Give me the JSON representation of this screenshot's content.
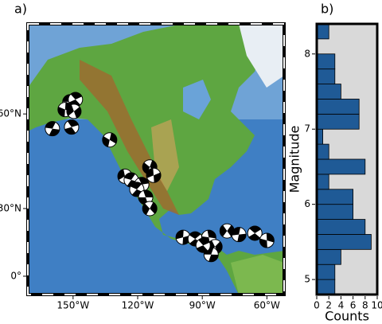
{
  "chart_data": [
    {
      "type": "map",
      "panel": "a)",
      "xlim": [
        -171,
        -52
      ],
      "ylim": [
        -8.5,
        75.3
      ],
      "xticks": [
        {
          "value": -150,
          "label": "150°W"
        },
        {
          "value": -120,
          "label": "120°W"
        },
        {
          "value": -90,
          "label": "90°W"
        },
        {
          "value": -60,
          "label": "60°W"
        }
      ],
      "yticks": [
        {
          "value": 0,
          "label": "0°"
        },
        {
          "value": 30,
          "label": "30°N"
        },
        {
          "value": 60,
          "label": "60°N"
        }
      ],
      "lon": [
        -151.5,
        -148.9,
        -153.7,
        -149.6,
        -159.6,
        -150.7,
        -133.0,
        -125.9,
        -123.0,
        -118.1,
        -114.4,
        -112.6,
        -120.4,
        -116.3,
        -114.4,
        -98.9,
        -93.3,
        -87.0,
        -78.5,
        -73.0,
        -65.6,
        -60.0,
        -84.1,
        -85.9,
        -89.6
      ],
      "lat": [
        62.7,
        63.2,
        61.0,
        60.6,
        56.4,
        56.8,
        53.4,
        42.1,
        40.8,
        39.2,
        45.2,
        42.4,
        37.4,
        34.4,
        30.0,
        17.8,
        17.1,
        17.8,
        20.6,
        19.0,
        19.6,
        16.4,
        13.6,
        10.0,
        14.2
      ]
    },
    {
      "type": "histogram",
      "panel": "b)",
      "orientation": "horizontal",
      "bins": [
        4.8,
        5.0,
        5.2,
        5.4,
        5.6,
        5.8,
        6.0,
        6.2,
        6.4,
        6.6,
        6.8,
        7.0,
        7.2,
        7.4,
        7.6,
        7.8,
        8.0,
        8.2,
        8.4
      ],
      "counts": [
        3,
        3,
        4,
        9,
        8,
        6,
        6,
        2,
        8,
        2,
        1,
        7,
        7,
        4,
        3,
        3,
        0,
        2
      ],
      "color": "#1f5a96",
      "background": "#d9d9d9",
      "xlim": [
        0,
        10
      ],
      "xticks": [
        0,
        2,
        4,
        6,
        8,
        10
      ],
      "ylim": [
        4.8,
        8.4
      ],
      "yticks": [
        5,
        6,
        7,
        8
      ],
      "xlabel": "Counts",
      "ylabel": "Magnitude"
    }
  ]
}
